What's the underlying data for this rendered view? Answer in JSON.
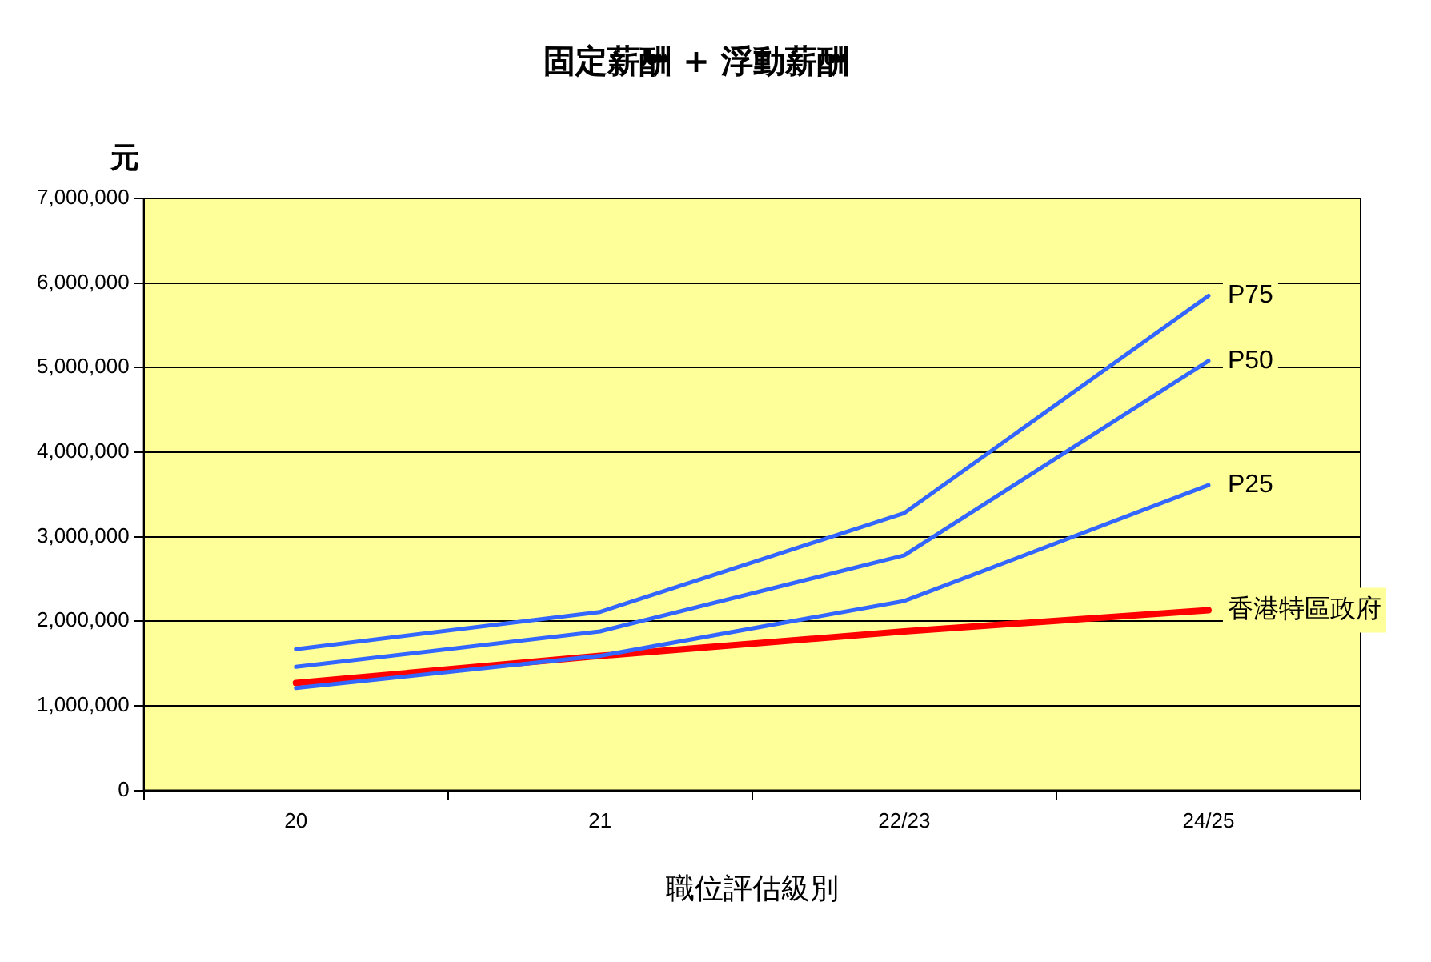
{
  "chart_data": {
    "type": "line",
    "title": "固定薪酬 + 浮動薪酬",
    "ylabel": "元",
    "xlabel": "職位評估級別",
    "categories": [
      "20",
      "21",
      "22/23",
      "24/25"
    ],
    "ylim": [
      0,
      7000000
    ],
    "yticks": [
      0,
      {
        "value": 1000000,
        "label": "1,000,000"
      },
      {
        "value": 2000000,
        "label": "2,000,000"
      },
      {
        "value": 3000000,
        "label": "3,000,000"
      },
      {
        "value": 4000000,
        "label": "4,000,000"
      },
      {
        "value": 5000000,
        "label": "5,000,000"
      },
      {
        "value": 6000000,
        "label": "6,000,000"
      },
      {
        "value": 7000000,
        "label": "7,000,000"
      }
    ],
    "grid": "y",
    "legend": false,
    "marker": "none",
    "line_style": "solid",
    "series": [
      {
        "name": "P75",
        "color": "#3366ff",
        "values": [
          1670000,
          2110000,
          3280000,
          5850000
        ]
      },
      {
        "name": "P50",
        "color": "#3366ff",
        "values": [
          1460000,
          1880000,
          2780000,
          5080000
        ]
      },
      {
        "name": "P25",
        "color": "#3366ff",
        "values": [
          1210000,
          1590000,
          2240000,
          3610000
        ]
      },
      {
        "name": "香港特區政府",
        "color": "#ff0000",
        "values": [
          1270000,
          1590000,
          1880000,
          2130000
        ]
      }
    ]
  }
}
